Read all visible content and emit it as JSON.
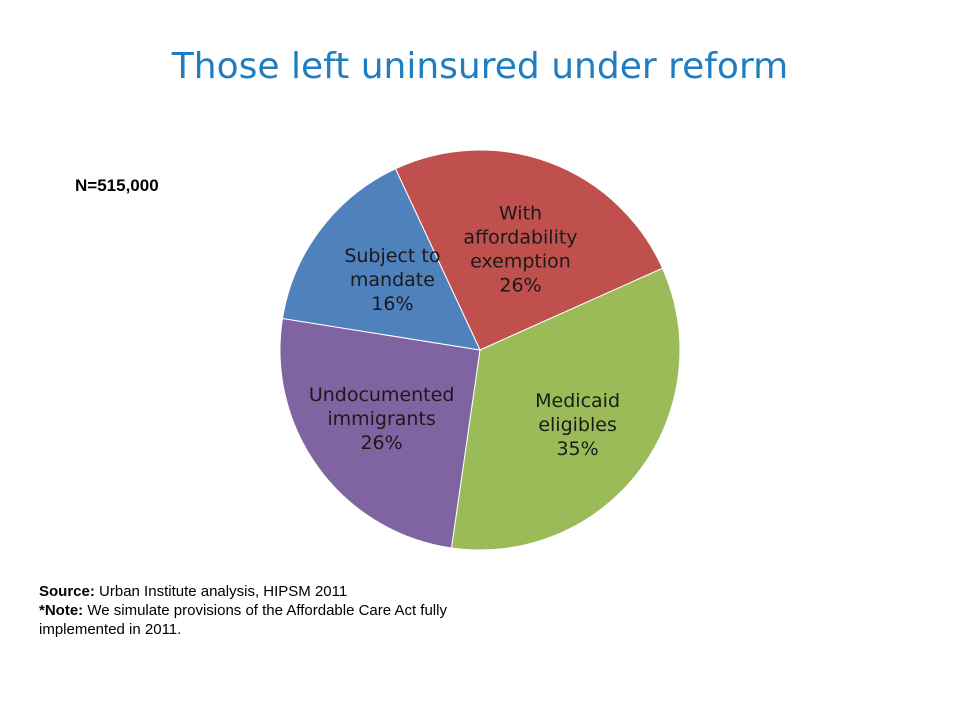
{
  "slide": {
    "title": "Those left uninsured under reform",
    "n_label": "N=515,000",
    "source_label": "Source:",
    "source_text": "Urban Institute analysis, HIPSM 2011",
    "note_label": "*Note:",
    "note_text": "We simulate provisions of the Affordable Care Act fully implemented in 2011."
  },
  "chart_data": {
    "type": "pie",
    "title": "",
    "slices": [
      {
        "lines": [
          "With",
          "affordability",
          "exemption"
        ],
        "value_label": "26%",
        "value": 26,
        "color": "#C0504D"
      },
      {
        "lines": [
          "Medicaid",
          "eligibles"
        ],
        "value_label": "35%",
        "value": 35,
        "color": "#9BBB59"
      },
      {
        "lines": [
          "Undocumented",
          "immigrants"
        ],
        "value_label": "26%",
        "value": 26,
        "color": "#8064A2"
      },
      {
        "lines": [
          "Subject to",
          "mandate"
        ],
        "value_label": "16%",
        "value": 16,
        "color": "#4F81BD"
      }
    ]
  }
}
